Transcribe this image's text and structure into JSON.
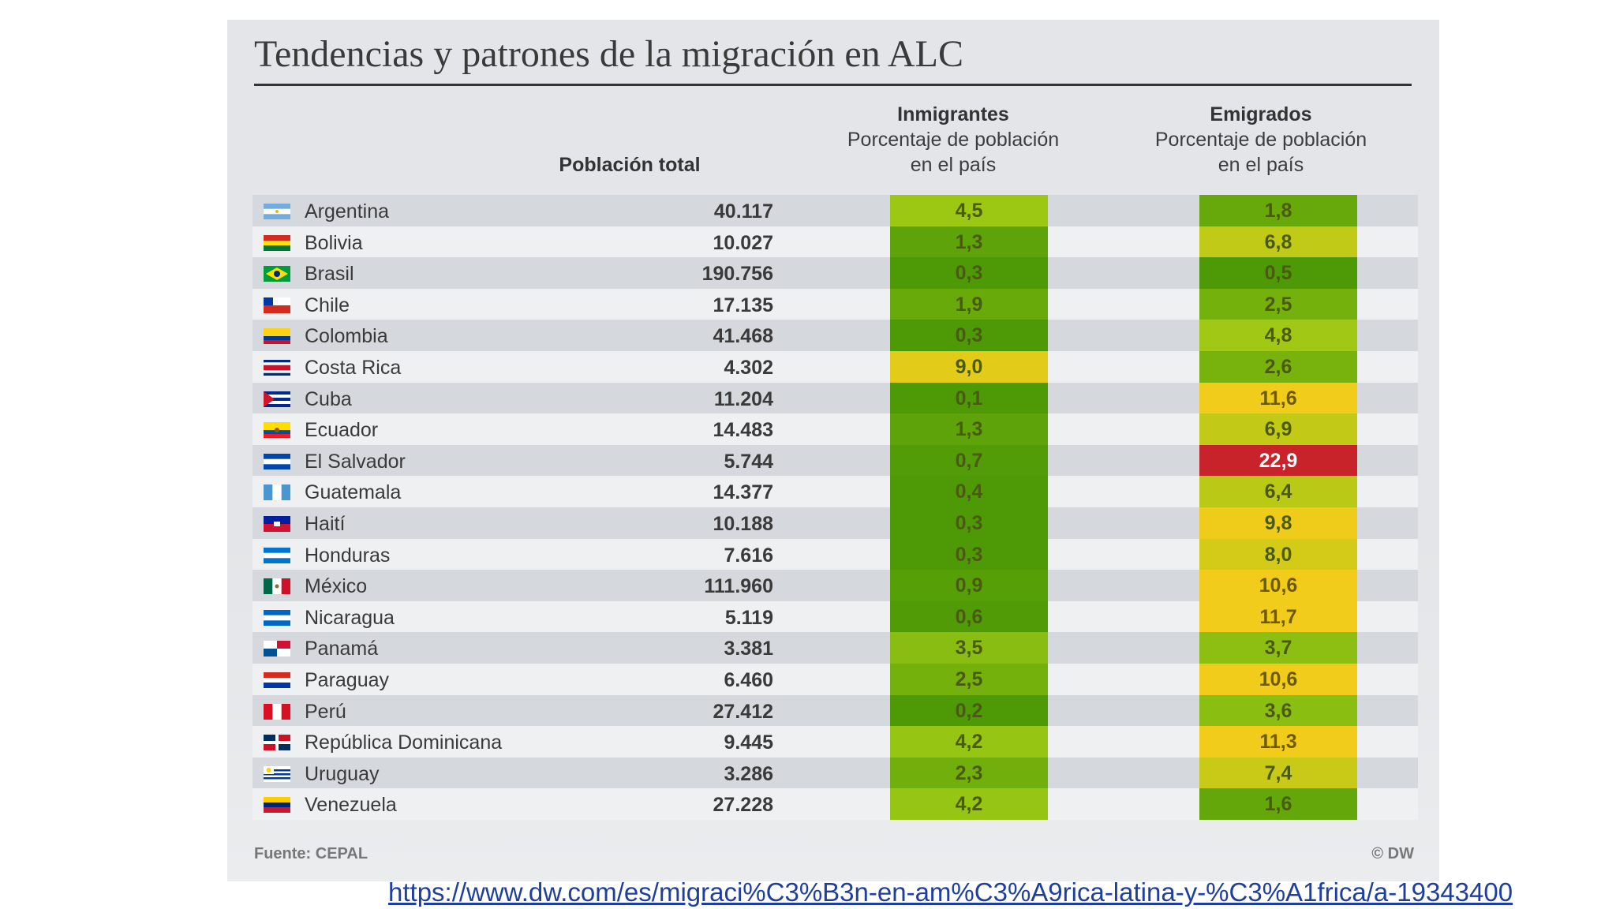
{
  "chart_data": {
    "type": "table",
    "title": "Tendencias y patrones de la migración en ALC",
    "columns": [
      {
        "name": "Población total",
        "subtitle": ""
      },
      {
        "name": "Inmigrantes",
        "subtitle_1": "Porcentaje de población",
        "subtitle_2": "en el país"
      },
      {
        "name": "Emigrados",
        "subtitle_1": "Porcentaje de población",
        "subtitle_2": "en el país"
      }
    ],
    "rows": [
      {
        "country": "Argentina",
        "population": "40.117",
        "immigrants": "4,5",
        "emigrants": "1,8"
      },
      {
        "country": "Bolivia",
        "population": "10.027",
        "immigrants": "1,3",
        "emigrants": "6,8"
      },
      {
        "country": "Brasil",
        "population": "190.756",
        "immigrants": "0,3",
        "emigrants": "0,5"
      },
      {
        "country": "Chile",
        "population": "17.135",
        "immigrants": "1,9",
        "emigrants": "2,5"
      },
      {
        "country": "Colombia",
        "population": "41.468",
        "immigrants": "0,3",
        "emigrants": "4,8"
      },
      {
        "country": "Costa Rica",
        "population": "4.302",
        "immigrants": "9,0",
        "emigrants": "2,6"
      },
      {
        "country": "Cuba",
        "population": "11.204",
        "immigrants": "0,1",
        "emigrants": "11,6"
      },
      {
        "country": "Ecuador",
        "population": "14.483",
        "immigrants": "1,3",
        "emigrants": "6,9"
      },
      {
        "country": "El Salvador",
        "population": "5.744",
        "immigrants": "0,7",
        "emigrants": "22,9"
      },
      {
        "country": "Guatemala",
        "population": "14.377",
        "immigrants": "0,4",
        "emigrants": "6,4"
      },
      {
        "country": "Haití",
        "population": "10.188",
        "immigrants": "0,3",
        "emigrants": "9,8"
      },
      {
        "country": "Honduras",
        "population": "7.616",
        "immigrants": "0,3",
        "emigrants": "8,0"
      },
      {
        "country": "México",
        "population": "111.960",
        "immigrants": "0,9",
        "emigrants": "10,6"
      },
      {
        "country": "Nicaragua",
        "population": "5.119",
        "immigrants": "0,6",
        "emigrants": "11,7"
      },
      {
        "country": "Panamá",
        "population": "3.381",
        "immigrants": "3,5",
        "emigrants": "3,7"
      },
      {
        "country": "Paraguay",
        "population": "6.460",
        "immigrants": "2,5",
        "emigrants": "10,6"
      },
      {
        "country": "Perú",
        "population": "27.412",
        "immigrants": "0,2",
        "emigrants": "3,6"
      },
      {
        "country": "República Dominicana",
        "population": "9.445",
        "immigrants": "4,2",
        "emigrants": "11,3"
      },
      {
        "country": "Uruguay",
        "population": "3.286",
        "immigrants": "2,3",
        "emigrants": "7,4"
      },
      {
        "country": "Venezuela",
        "population": "27.228",
        "immigrants": "4,2",
        "emigrants": "1,6"
      }
    ],
    "color_scale": {
      "low": "#4e9a06",
      "mid": "#9cc814",
      "high": "#f2cc1a",
      "extreme": "#c8222a"
    }
  },
  "footer": {
    "source": "Fuente: CEPAL",
    "credit": "© DW"
  },
  "link": {
    "url": "https://www.dw.com/es/migraci%C3%B3n-en-am%C3%A9rica-latina-y-%C3%A1frica/a-19343400"
  }
}
